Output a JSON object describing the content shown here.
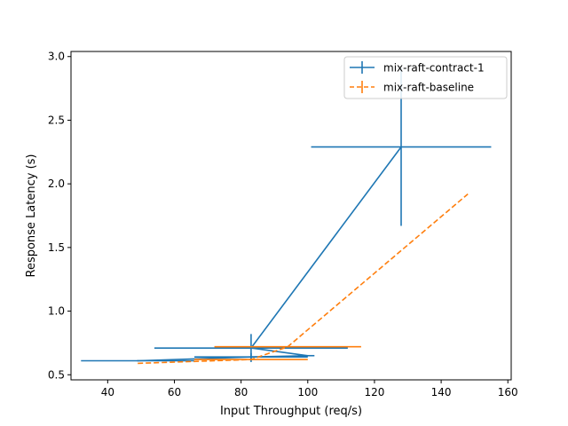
{
  "chart_data": {
    "type": "line",
    "title": "",
    "xlabel": "Input Throughput (req/s)",
    "ylabel": "Response Latency (s)",
    "xlim": [
      29,
      161
    ],
    "ylim": [
      0.46,
      3.04
    ],
    "xticks": [
      40,
      60,
      80,
      100,
      120,
      140,
      160
    ],
    "yticks": [
      0.5,
      1.0,
      1.5,
      2.0,
      2.5,
      3.0
    ],
    "xtick_labels": [
      "40",
      "60",
      "80",
      "100",
      "120",
      "140",
      "160"
    ],
    "ytick_labels": [
      "0.5",
      "1.0",
      "1.5",
      "2.0",
      "2.5",
      "3.0"
    ],
    "grid": false,
    "legend_position": "upper right",
    "series": [
      {
        "name": "mix-raft-contract-1",
        "color": "#1f77b4",
        "linestyle": "solid",
        "points": [
          {
            "x": 49,
            "y": 0.61,
            "xerr": 17,
            "yerr": 0.005
          },
          {
            "x": 83,
            "y": 0.64,
            "xerr": 17,
            "yerr": 0.03
          },
          {
            "x": 100,
            "y": 0.65,
            "xerr": 2,
            "yerr": 0.005
          },
          {
            "x": 83,
            "y": 0.71,
            "xerr": 29,
            "yerr": 0.11
          },
          {
            "x": 128,
            "y": 2.29,
            "xerr": 27,
            "yerr": 0.62
          }
        ]
      },
      {
        "name": "mix-raft-baseline",
        "color": "#ff7f0e",
        "linestyle": "dashed",
        "points": [
          {
            "x": 49,
            "y": 0.59,
            "xerr": 0,
            "yerr": 0
          },
          {
            "x": 83,
            "y": 0.62,
            "xerr": 17,
            "yerr": 0.005
          },
          {
            "x": 94,
            "y": 0.72,
            "xerr": 22,
            "yerr": 0.005
          },
          {
            "x": 148,
            "y": 1.92,
            "xerr": 0,
            "yerr": 0
          }
        ]
      }
    ]
  }
}
